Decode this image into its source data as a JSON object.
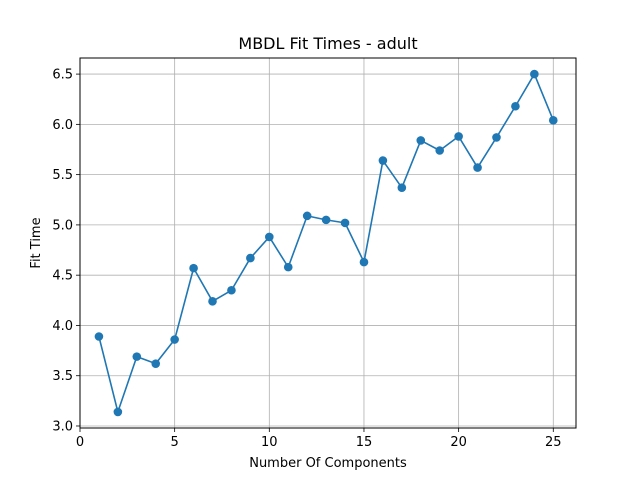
{
  "chart_data": {
    "type": "line",
    "title": "MBDL Fit Times - adult",
    "xlabel": "Number Of Components",
    "ylabel": "Fit Time",
    "xlim": [
      0,
      26.2
    ],
    "ylim": [
      2.98,
      6.66
    ],
    "xticks": [
      0,
      5,
      10,
      15,
      20,
      25
    ],
    "yticks": [
      3.0,
      3.5,
      4.0,
      4.5,
      5.0,
      5.5,
      6.0,
      6.5
    ],
    "ytick_labels": [
      "3.0",
      "3.5",
      "4.0",
      "4.5",
      "5.0",
      "5.5",
      "6.0",
      "6.5"
    ],
    "grid": true,
    "marker": "circle",
    "color": "#1f77b4",
    "series": [
      {
        "x": [
          1,
          2,
          3,
          4,
          5,
          6,
          7,
          8,
          9,
          10,
          11,
          12,
          13,
          14,
          15,
          16,
          17,
          18,
          19,
          20,
          21,
          22,
          23,
          24,
          25
        ],
        "y": [
          3.89,
          3.14,
          3.69,
          3.62,
          3.86,
          4.57,
          4.24,
          4.35,
          4.67,
          4.88,
          4.58,
          5.09,
          5.05,
          5.02,
          4.63,
          5.64,
          5.37,
          5.84,
          5.74,
          5.88,
          5.57,
          5.87,
          6.18,
          6.5,
          6.04
        ]
      }
    ]
  }
}
